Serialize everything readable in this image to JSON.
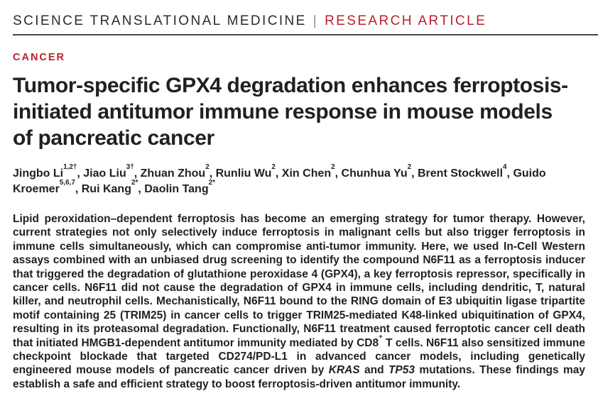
{
  "masthead": {
    "journal": "SCIENCE TRANSLATIONAL MEDICINE",
    "divider": "|",
    "article_type": "RESEARCH ARTICLE"
  },
  "section_label": "CANCER",
  "title": {
    "full": "Tumor-specific GPX4 degradation enhances ferroptosis-initiated antitumor immune response in mouse models of pancreatic cancer",
    "lines": [
      "Tumor-specific GPX4 degradation enhances ferroptosis-",
      "initiated antitumor immune response in mouse models",
      "of pancreatic cancer"
    ]
  },
  "authors": [
    {
      "name": "Jingbo Li",
      "sup": "1,2†"
    },
    {
      "name": "Jiao Liu",
      "sup": "3†"
    },
    {
      "name": "Zhuan Zhou",
      "sup": "2"
    },
    {
      "name": "Runliu Wu",
      "sup": "2"
    },
    {
      "name": "Xin Chen",
      "sup": "2"
    },
    {
      "name": "Chunhua Yu",
      "sup": "2"
    },
    {
      "name": "Brent Stockwell",
      "sup": "4"
    },
    {
      "name": "Guido Kroemer",
      "sup": "5,6,7"
    },
    {
      "name": "Rui Kang",
      "sup": "2*"
    },
    {
      "name": "Daolin Tang",
      "sup": "2*"
    }
  ],
  "abstract_segments": [
    {
      "t": "Lipid peroxidation–dependent ferroptosis has become an emerging strategy for tumor therapy. However, current strategies not only selectively induce ferroptosis in malignant cells but also trigger ferroptosis in immune cells simultaneously, which can compromise anti-tumor immunity. Here, we used In-Cell Western assays combined with an unbiased drug screening to identify the compound N6F11 as a ferroptosis inducer that triggered the degradation of glutathione peroxidase 4 (GPX4), a key ferroptosis repressor, specifically in cancer cells. N6F11 did not cause the degradation of GPX4 in immune cells, including dendritic, T, natural killer, and neutrophil cells. Mechanistically, N6F11 bound to the RING domain of E3 ubiquitin ligase tripartite motif containing 25 (TRIM25) in cancer cells to trigger TRIM25-mediated K48-linked ubiquitination of GPX4, resulting in its proteasomal degradation. Functionally, N6F11 treatment caused ferroptotic cancer cell death that initiated HMGB1-dependent antitumor immunity mediated by CD8"
    },
    {
      "t": "+",
      "s": "sup"
    },
    {
      "t": " T cells. N6F11 also sensitized immune checkpoint blockade that targeted CD274/PD-L1 in advanced cancer models, including genetically engineered mouse models of pancreatic cancer driven by "
    },
    {
      "t": "KRAS",
      "s": "i"
    },
    {
      "t": " and "
    },
    {
      "t": "TP53",
      "s": "i"
    },
    {
      "t": " mutations. These findings may establish a safe and efficient strategy to boost ferroptosis-driven antitumor immunity."
    }
  ],
  "colors": {
    "accent_red": "#be1e2d",
    "text": "#231f20",
    "rule": "#474747"
  }
}
